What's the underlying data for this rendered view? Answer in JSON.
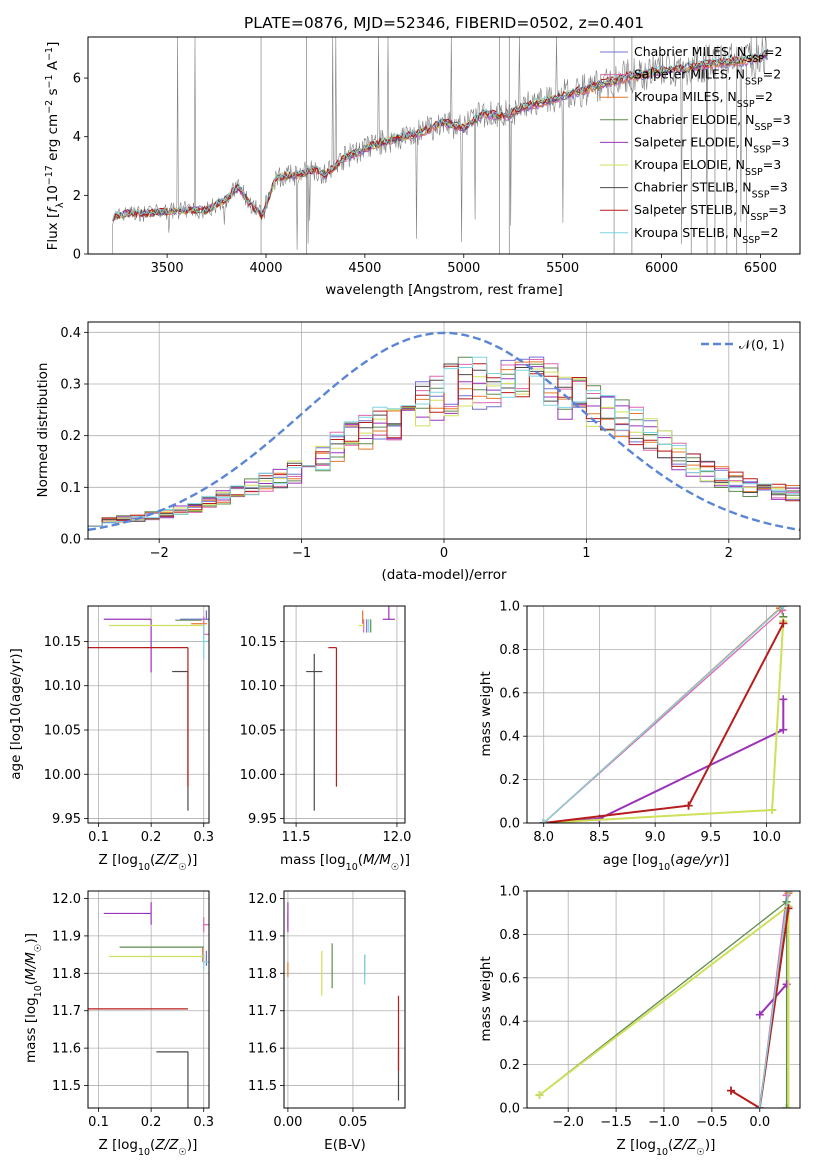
{
  "figure": {
    "title": "PLATE=0876, MJD=52346, FIBERID=0502, z=0.401"
  },
  "models": [
    {
      "name": "Chabrier MILES, N_SSP=2",
      "color": "#7070d6"
    },
    {
      "name": "Salpeter MILES, N_SSP=2",
      "color": "#e066b0"
    },
    {
      "name": "Kroupa MILES, N_SSP=2",
      "color": "#e57a2a"
    },
    {
      "name": "Chabrier ELODIE, N_SSP=3",
      "color": "#5e8c4e"
    },
    {
      "name": "Salpeter ELODIE, N_SSP=3",
      "color": "#9b33b8"
    },
    {
      "name": "Kroupa ELODIE, N_SSP=3",
      "color": "#cfe05a"
    },
    {
      "name": "Chabrier STELIB, N_SSP=3",
      "color": "#4a4a4a"
    },
    {
      "name": "Salpeter STELIB, N_SSP=3",
      "color": "#b81d1d"
    },
    {
      "name": "Kroupa STELIB, N_SSP=2",
      "color": "#7dd4e0"
    }
  ],
  "chart_data": [
    {
      "id": "spectrum",
      "type": "line",
      "title": "PLATE=0876, MJD=52346, FIBERID=0502, z=0.401",
      "xlabel": "wavelength [Angstrom, rest frame]",
      "ylabel": "Flux [f_λ 10^-17 erg cm^-2 s^-1 A^-1]",
      "xlim": [
        3100,
        6700
      ],
      "ylim": [
        0,
        7.4
      ],
      "xticks": [
        3500,
        4000,
        4500,
        5000,
        5500,
        6000,
        6500
      ],
      "yticks": [
        0,
        2,
        4,
        6
      ],
      "grid": false,
      "legend": "top-right",
      "data_color": "#808080",
      "continuum": [
        [
          3220,
          1.25
        ],
        [
          3300,
          1.4
        ],
        [
          3400,
          1.4
        ],
        [
          3500,
          1.45
        ],
        [
          3600,
          1.5
        ],
        [
          3700,
          1.5
        ],
        [
          3800,
          1.9
        ],
        [
          3860,
          2.3
        ],
        [
          3930,
          1.6
        ],
        [
          3980,
          1.3
        ],
        [
          4050,
          2.6
        ],
        [
          4150,
          2.7
        ],
        [
          4250,
          2.9
        ],
        [
          4300,
          2.7
        ],
        [
          4400,
          3.3
        ],
        [
          4500,
          3.6
        ],
        [
          4600,
          3.85
        ],
        [
          4700,
          4.0
        ],
        [
          4800,
          4.2
        ],
        [
          4900,
          4.5
        ],
        [
          5000,
          4.3
        ],
        [
          5100,
          4.8
        ],
        [
          5200,
          4.7
        ],
        [
          5300,
          5.0
        ],
        [
          5400,
          5.2
        ],
        [
          5500,
          5.4
        ],
        [
          5600,
          5.6
        ],
        [
          5700,
          5.8
        ],
        [
          5800,
          6.0
        ],
        [
          5900,
          6.15
        ],
        [
          6000,
          6.25
        ],
        [
          6100,
          6.35
        ],
        [
          6200,
          6.45
        ],
        [
          6300,
          6.55
        ],
        [
          6400,
          6.6
        ],
        [
          6500,
          6.75
        ],
        [
          6540,
          6.9
        ]
      ]
    },
    {
      "id": "residuals",
      "type": "line",
      "xlabel": "(data-model)/error",
      "ylabel": "Normed distribution",
      "xlim": [
        -2.5,
        2.5
      ],
      "ylim": [
        0,
        0.42
      ],
      "xticks": [
        -2,
        -1,
        0,
        1,
        2
      ],
      "yticks": [
        0.0,
        0.1,
        0.2,
        0.3,
        0.4
      ],
      "grid": true,
      "legend": "top-right",
      "reference": {
        "name": "N(0,1)",
        "color": "#5b86d6",
        "style": "dashed"
      },
      "bins": {
        "start": -2.5,
        "width": 0.1,
        "count": 50
      },
      "envelope": [
        0.03,
        0.035,
        0.04,
        0.04,
        0.045,
        0.05,
        0.055,
        0.06,
        0.07,
        0.08,
        0.09,
        0.1,
        0.11,
        0.12,
        0.13,
        0.14,
        0.16,
        0.18,
        0.2,
        0.21,
        0.22,
        0.23,
        0.25,
        0.26,
        0.28,
        0.29,
        0.3,
        0.3,
        0.31,
        0.31,
        0.3,
        0.3,
        0.29,
        0.28,
        0.27,
        0.26,
        0.24,
        0.23,
        0.22,
        0.2,
        0.18,
        0.16,
        0.14,
        0.13,
        0.12,
        0.11,
        0.1,
        0.1,
        0.09,
        0.09
      ]
    },
    {
      "id": "age-vs-Z",
      "type": "scatter",
      "xlabel": "Z [log10(Z/Z☉)]",
      "ylabel": "age [log10(age/yr)]",
      "xlim": [
        0.08,
        0.31
      ],
      "ylim": [
        9.945,
        10.19
      ],
      "xticks": [
        0.1,
        0.2,
        0.3
      ],
      "yticks": [
        9.95,
        10.0,
        10.05,
        10.1,
        10.15
      ],
      "grid": true,
      "points": [
        {
          "model": 0,
          "x": 0.305,
          "y": 10.175,
          "ex": [
            0.05,
            0.01
          ],
          "ey": [
            0.0,
            0.01
          ]
        },
        {
          "model": 1,
          "x": 0.3,
          "y": 10.158,
          "ex": [
            0.0,
            0.01
          ],
          "ey": [
            0.0,
            0.02
          ]
        },
        {
          "model": 2,
          "x": 0.296,
          "y": 10.17,
          "ex": [
            0.02,
            0.01
          ],
          "ey": [
            0.0,
            0.0
          ]
        },
        {
          "model": 3,
          "x": 0.296,
          "y": 10.174,
          "ex": [
            0.05,
            0.0
          ],
          "ey": [
            0.0,
            0.0
          ]
        },
        {
          "model": 4,
          "x": 0.2,
          "y": 10.175,
          "ex": [
            0.09,
            0.0
          ],
          "ey": [
            0.06,
            0.0
          ]
        },
        {
          "model": 5,
          "x": 0.27,
          "y": 10.168,
          "ex": [
            0.15,
            0.03
          ],
          "ey": [
            0.0,
            0.0
          ]
        },
        {
          "model": 6,
          "x": 0.27,
          "y": 10.116,
          "ex": [
            0.03,
            0.0
          ],
          "ey": [
            0.157,
            0.0
          ]
        },
        {
          "model": 7,
          "x": 0.27,
          "y": 10.143,
          "ex": [
            0.19,
            0.0
          ],
          "ey": [
            0.157,
            0.0
          ]
        },
        {
          "model": 8,
          "x": 0.3,
          "y": 10.15,
          "ex": [
            0.0,
            0.01
          ],
          "ey": [
            0.02,
            0.02
          ]
        }
      ]
    },
    {
      "id": "age-vs-mass",
      "type": "scatter",
      "xlabel": "mass [log10(M/M☉)]",
      "ylabel": "",
      "xlim": [
        11.44,
        12.04
      ],
      "ylim": [
        9.945,
        10.19
      ],
      "xticks": [
        11.5,
        12.0
      ],
      "yticks": [
        9.95,
        10.0,
        10.05,
        10.1,
        10.15
      ],
      "grid": true,
      "points": [
        {
          "model": 0,
          "x": 11.85,
          "y": 10.16,
          "ex": [
            0.0,
            0.0
          ],
          "ey": [
            0.0,
            0.015
          ]
        },
        {
          "model": 1,
          "x": 11.835,
          "y": 10.16,
          "ex": [
            0.0,
            0.0
          ],
          "ey": [
            0.0,
            0.015
          ]
        },
        {
          "model": 2,
          "x": 11.83,
          "y": 10.17,
          "ex": [
            0.0,
            0.0
          ],
          "ey": [
            0.0,
            0.015
          ]
        },
        {
          "model": 3,
          "x": 11.87,
          "y": 10.16,
          "ex": [
            0.0,
            0.0
          ],
          "ey": [
            0.0,
            0.015
          ]
        },
        {
          "model": 4,
          "x": 11.96,
          "y": 10.175,
          "ex": [
            0.03,
            0.03
          ],
          "ey": [
            0.0,
            0.06
          ]
        },
        {
          "model": 5,
          "x": 11.84,
          "y": 10.168,
          "ex": [
            0.03,
            0.0
          ],
          "ey": [
            0.0,
            0.0
          ]
        },
        {
          "model": 6,
          "x": 11.59,
          "y": 10.116,
          "ex": [
            0.04,
            0.04
          ],
          "ey": [
            0.157,
            0.02
          ]
        },
        {
          "model": 7,
          "x": 11.7,
          "y": 10.143,
          "ex": [
            0.04,
            0.0
          ],
          "ey": [
            0.157,
            0.0
          ]
        },
        {
          "model": 8,
          "x": 11.86,
          "y": 10.16,
          "ex": [
            0.0,
            0.0
          ],
          "ey": [
            0.0,
            0.015
          ]
        }
      ]
    },
    {
      "id": "weight-vs-age",
      "type": "line",
      "xlabel": "age [log10(age/yr)]",
      "ylabel": "mass weight",
      "xlim": [
        7.85,
        10.3
      ],
      "ylim": [
        0,
        1.0
      ],
      "xticks": [
        8.0,
        8.5,
        9.0,
        9.5,
        10.0
      ],
      "yticks": [
        0.0,
        0.2,
        0.4,
        0.6,
        0.8,
        1.0
      ],
      "grid": true,
      "series": [
        {
          "model": 0,
          "points": [
            [
              8.0,
              0.0
            ],
            [
              10.15,
              1.0
            ]
          ]
        },
        {
          "model": 1,
          "points": [
            [
              8.0,
              0.0
            ],
            [
              10.14,
              0.98
            ]
          ]
        },
        {
          "model": 2,
          "points": [
            [
              8.0,
              0.0
            ],
            [
              10.12,
              0.99
            ]
          ]
        },
        {
          "model": 3,
          "points": [
            [
              8.0,
              0.0
            ],
            [
              10.05,
              0.06
            ],
            [
              10.15,
              0.95
            ]
          ]
        },
        {
          "model": 4,
          "points": [
            [
              8.0,
              0.0
            ],
            [
              8.5,
              0.02
            ],
            [
              10.15,
              0.43
            ],
            [
              10.15,
              0.57
            ]
          ]
        },
        {
          "model": 5,
          "points": [
            [
              8.0,
              0.0
            ],
            [
              10.05,
              0.06
            ],
            [
              10.15,
              0.93
            ]
          ]
        },
        {
          "model": 6,
          "points": [
            [
              8.0,
              0.0
            ],
            [
              9.3,
              0.08
            ],
            [
              10.15,
              0.92
            ]
          ]
        },
        {
          "model": 7,
          "points": [
            [
              8.0,
              0.0
            ],
            [
              9.3,
              0.08
            ],
            [
              10.15,
              0.92
            ]
          ]
        },
        {
          "model": 8,
          "points": [
            [
              8.0,
              0.0
            ],
            [
              10.15,
              1.0
            ]
          ]
        }
      ]
    },
    {
      "id": "mass-vs-Z",
      "type": "scatter",
      "xlabel": "Z [log10(Z/Z☉)]",
      "ylabel": "mass [log10(M/M☉)]",
      "xlim": [
        0.08,
        0.31
      ],
      "ylim": [
        11.44,
        12.02
      ],
      "xticks": [
        0.1,
        0.2,
        0.3
      ],
      "yticks": [
        11.5,
        11.6,
        11.7,
        11.8,
        11.9,
        12.0
      ],
      "grid": true,
      "points": [
        {
          "model": 0,
          "x": 0.305,
          "y": 11.84,
          "ex": [
            0.0,
            0.0
          ],
          "ey": [
            0.02,
            0.02
          ]
        },
        {
          "model": 1,
          "x": 0.3,
          "y": 11.93,
          "ex": [
            0.0,
            0.01
          ],
          "ey": [
            0.02,
            0.02
          ]
        },
        {
          "model": 2,
          "x": 0.298,
          "y": 11.85,
          "ex": [
            0.0,
            0.0
          ],
          "ey": [
            0.02,
            0.02
          ]
        },
        {
          "model": 3,
          "x": 0.27,
          "y": 11.87,
          "ex": [
            0.13,
            0.03
          ],
          "ey": [
            0.0,
            0.0
          ]
        },
        {
          "model": 4,
          "x": 0.2,
          "y": 11.96,
          "ex": [
            0.09,
            0.0
          ],
          "ey": [
            0.03,
            0.03
          ]
        },
        {
          "model": 5,
          "x": 0.27,
          "y": 11.845,
          "ex": [
            0.15,
            0.03
          ],
          "ey": [
            0.0,
            0.0
          ]
        },
        {
          "model": 6,
          "x": 0.27,
          "y": 11.59,
          "ex": [
            0.06,
            0.0
          ],
          "ey": [
            0.3,
            0.0
          ]
        },
        {
          "model": 7,
          "x": 0.27,
          "y": 11.705,
          "ex": [
            0.19,
            0.0
          ],
          "ey": [
            0.0,
            0.0
          ]
        },
        {
          "model": 8,
          "x": 0.3,
          "y": 11.83,
          "ex": [
            0.0,
            0.01
          ],
          "ey": [
            0.02,
            0.02
          ]
        }
      ]
    },
    {
      "id": "mass-vs-EBV",
      "type": "scatter",
      "xlabel": "E(B-V)",
      "ylabel": "",
      "xlim": [
        -0.003,
        0.09
      ],
      "ylim": [
        11.44,
        12.02
      ],
      "xticks": [
        0.0,
        0.05
      ],
      "yticks": [
        11.5,
        11.6,
        11.7,
        11.8,
        11.9,
        12.0
      ],
      "grid": true,
      "points": [
        {
          "model": 0,
          "x": 0.059,
          "y": 11.82,
          "ex": [
            0,
            0
          ],
          "ey": [
            0.03,
            0.03
          ]
        },
        {
          "model": 1,
          "x": 0.0,
          "y": 11.94,
          "ex": [
            0,
            0
          ],
          "ey": [
            0.02,
            0.02
          ]
        },
        {
          "model": 2,
          "x": 0.0,
          "y": 11.81,
          "ex": [
            0,
            0
          ],
          "ey": [
            0.02,
            0.02
          ]
        },
        {
          "model": 3,
          "x": 0.034,
          "y": 11.82,
          "ex": [
            0,
            0
          ],
          "ey": [
            0.06,
            0.06
          ]
        },
        {
          "model": 4,
          "x": 0.0,
          "y": 11.95,
          "ex": [
            0,
            0
          ],
          "ey": [
            0.04,
            0.04
          ]
        },
        {
          "model": 5,
          "x": 0.026,
          "y": 11.8,
          "ex": [
            0,
            0
          ],
          "ey": [
            0.06,
            0.06
          ]
        },
        {
          "model": 6,
          "x": 0.085,
          "y": 11.53,
          "ex": [
            0,
            0
          ],
          "ey": [
            0.07,
            0.07
          ]
        },
        {
          "model": 7,
          "x": 0.085,
          "y": 11.64,
          "ex": [
            0,
            0
          ],
          "ey": [
            0.1,
            0.1
          ]
        },
        {
          "model": 8,
          "x": 0.059,
          "y": 11.81,
          "ex": [
            0,
            0
          ],
          "ey": [
            0.04,
            0.04
          ]
        }
      ]
    },
    {
      "id": "weight-vs-Z",
      "type": "line",
      "xlabel": "Z [log10(Z/Z☉)]",
      "ylabel": "mass weight",
      "xlim": [
        -2.43,
        0.42
      ],
      "ylim": [
        0,
        1.0
      ],
      "xticks": [
        -2.0,
        -1.5,
        -1.0,
        -0.5,
        0.0
      ],
      "yticks": [
        0.0,
        0.2,
        0.4,
        0.6,
        0.8,
        1.0
      ],
      "grid": true,
      "series": [
        {
          "model": 0,
          "points": [
            [
              0.0,
              0.0
            ],
            [
              0.3,
              1.0
            ]
          ]
        },
        {
          "model": 1,
          "points": [
            [
              0.0,
              0.0
            ],
            [
              0.28,
              0.98
            ]
          ]
        },
        {
          "model": 2,
          "points": [
            [
              0.0,
              0.0
            ],
            [
              0.3,
              0.99
            ]
          ]
        },
        {
          "model": 3,
          "points": [
            [
              -2.3,
              0.06
            ],
            [
              0.28,
              0.95
            ],
            [
              0.28,
              0.0
            ]
          ]
        },
        {
          "model": 4,
          "points": [
            [
              0.0,
              0.43
            ],
            [
              0.28,
              0.57
            ]
          ]
        },
        {
          "model": 5,
          "points": [
            [
              -2.3,
              0.06
            ],
            [
              0.3,
              0.93
            ],
            [
              0.3,
              0.0
            ]
          ]
        },
        {
          "model": 6,
          "points": [
            [
              -0.3,
              0.08
            ],
            [
              0.0,
              0.0
            ],
            [
              0.3,
              0.92
            ]
          ]
        },
        {
          "model": 7,
          "points": [
            [
              -0.3,
              0.08
            ],
            [
              0.0,
              0.0
            ],
            [
              0.3,
              0.92
            ]
          ]
        },
        {
          "model": 8,
          "points": [
            [
              0.0,
              0.0
            ],
            [
              0.3,
              1.0
            ]
          ]
        }
      ]
    }
  ]
}
